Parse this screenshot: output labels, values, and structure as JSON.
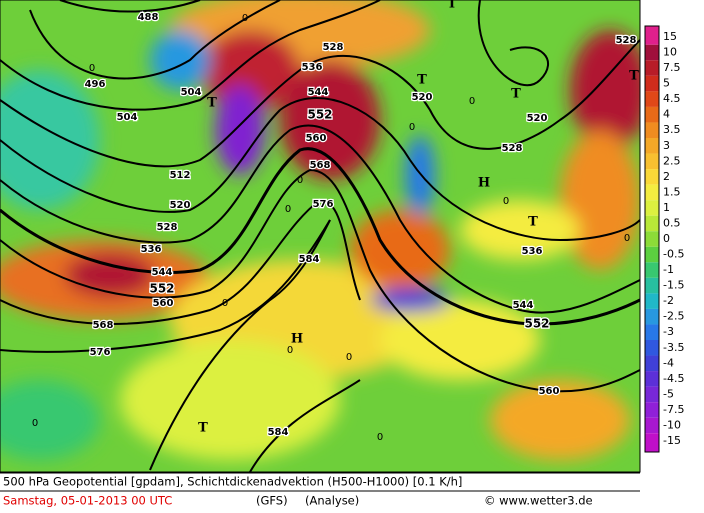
{
  "map": {
    "contour_labels": [
      "488",
      "496",
      "504",
      "504",
      "512",
      "520",
      "528",
      "536",
      "544",
      "552",
      "560",
      "568",
      "576",
      "584",
      "576",
      "568",
      "560",
      "552",
      "544",
      "536",
      "528",
      "520",
      "528",
      "520",
      "536",
      "544",
      "552",
      "560",
      "584",
      "528"
    ],
    "pressure_centers": [
      "T",
      "T",
      "T",
      "H",
      "T",
      "H",
      "T",
      "T",
      "T"
    ],
    "zero_labels": [
      "0",
      "0",
      "0",
      "0",
      "0",
      "0",
      "0",
      "0",
      "0",
      "0",
      "0",
      "0",
      "0"
    ]
  },
  "colorbar": {
    "labels": [
      "15",
      "10",
      "7.5",
      "5",
      "4.5",
      "4",
      "3.5",
      "3",
      "2.5",
      "2",
      "1.5",
      "1",
      "0.5",
      "0",
      "-0.5",
      "-1",
      "-1.5",
      "-2",
      "-2.5",
      "-3",
      "-3.5",
      "-4",
      "-4.5",
      "-5",
      "-7.5",
      "-10",
      "-15"
    ],
    "colors": [
      "#e0208c",
      "#a0103c",
      "#b81c28",
      "#d02c1c",
      "#e04818",
      "#e86a18",
      "#f08c20",
      "#f4a828",
      "#f8c030",
      "#fad838",
      "#f4ec40",
      "#dcf040",
      "#b8e838",
      "#8cdc38",
      "#5cd040",
      "#38c870",
      "#28c0a0",
      "#20b8c8",
      "#2898e0",
      "#2878e8",
      "#3058e0",
      "#4040d8",
      "#5c30d8",
      "#7828d8",
      "#9020d8",
      "#a818d0",
      "#c010c8"
    ]
  },
  "footer": {
    "line1": "500 hPa Geopotential [gpdam], Schichtdickenadvektion (H500-H1000) [0.1 K/h]",
    "date": "Samstag, 05-01-2013  00 UTC",
    "model": "(GFS)",
    "kind": "(Analyse)",
    "copyright": "© www.wetter3.de"
  }
}
